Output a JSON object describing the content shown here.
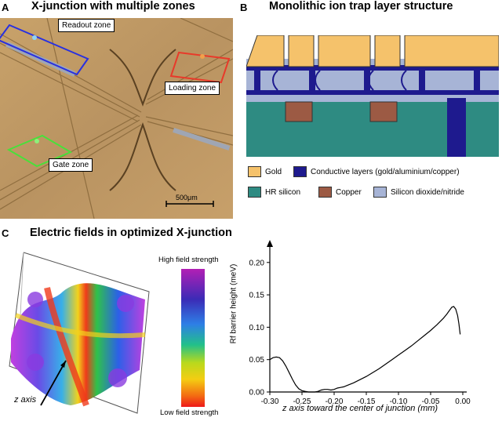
{
  "panels": {
    "a": {
      "letter": "A",
      "title": "X-junction with multiple zones",
      "zones": {
        "readout": "Readout zone",
        "loading": "Loading zone",
        "gate": "Gate zone"
      },
      "scale_bar": "500μm"
    },
    "b": {
      "letter": "B",
      "title": "Monolithic ion trap layer structure",
      "legend": [
        {
          "label": "Gold",
          "color": "#F5C26B"
        },
        {
          "label": "Conductive layers (gold/aluminium/copper)",
          "color": "#1E1A8E"
        },
        {
          "label": "HR silicon",
          "color": "#2E8B82"
        },
        {
          "label": "Copper",
          "color": "#9C5A44"
        },
        {
          "label": "Silicon dioxide/nitride",
          "color": "#A7B4D6"
        }
      ]
    },
    "c": {
      "letter": "C",
      "title": "Electric fields in optimized X-junction",
      "colorbar": {
        "top": "High field strength",
        "bottom": "Low field strength"
      },
      "axis_note": "z axis"
    }
  },
  "chart_data": {
    "type": "line",
    "xlabel": "z axis toward the center of junction (mm)",
    "ylabel": "Rf barrier height (meV)",
    "xlim": [
      -0.3,
      0.0
    ],
    "ylim": [
      0.0,
      0.23
    ],
    "xticks": [
      "-0.30",
      "-0.25",
      "-0.20",
      "-0.15",
      "-0.10",
      "-0.05",
      "0.00"
    ],
    "yticks": [
      "0.00",
      "0.05",
      "0.10",
      "0.15",
      "0.20"
    ],
    "series": [
      {
        "x": [
          -0.3,
          -0.295,
          -0.29,
          -0.285,
          -0.28,
          -0.275,
          -0.27,
          -0.265,
          -0.26,
          -0.255,
          -0.25,
          -0.245,
          -0.24,
          -0.235,
          -0.23,
          -0.225,
          -0.22,
          -0.215,
          -0.21,
          -0.205,
          -0.2,
          -0.195,
          -0.19,
          -0.185,
          -0.18,
          -0.17,
          -0.16,
          -0.15,
          -0.14,
          -0.13,
          -0.12,
          -0.11,
          -0.1,
          -0.09,
          -0.08,
          -0.07,
          -0.06,
          -0.05,
          -0.04,
          -0.03,
          -0.025,
          -0.02,
          -0.017,
          -0.014,
          -0.011,
          -0.008,
          -0.006,
          -0.004
        ],
        "y": [
          0.05,
          0.053,
          0.054,
          0.053,
          0.048,
          0.04,
          0.03,
          0.02,
          0.011,
          0.005,
          0.002,
          0.001,
          0.0,
          0.0,
          0.0,
          0.001,
          0.003,
          0.004,
          0.004,
          0.003,
          0.004,
          0.006,
          0.007,
          0.008,
          0.01,
          0.014,
          0.019,
          0.024,
          0.03,
          0.036,
          0.043,
          0.05,
          0.057,
          0.064,
          0.071,
          0.079,
          0.087,
          0.095,
          0.104,
          0.114,
          0.12,
          0.127,
          0.131,
          0.132,
          0.128,
          0.118,
          0.105,
          0.089
        ]
      }
    ]
  }
}
